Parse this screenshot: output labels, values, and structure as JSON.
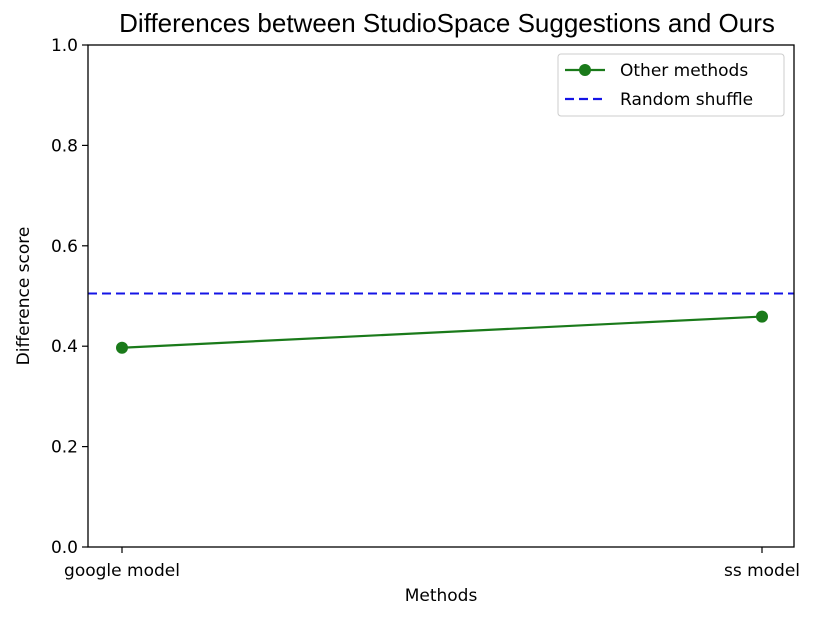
{
  "chart_data": {
    "type": "line",
    "title": "Differences between StudioSpace Suggestions and Ours",
    "xlabel": "Methods",
    "ylabel": "Difference score",
    "categories": [
      "google model",
      "ss model"
    ],
    "ylim": [
      0.0,
      1.0
    ],
    "yticks": [
      "0.0",
      "0.2",
      "0.4",
      "0.6",
      "0.8",
      "1.0"
    ],
    "grid": false,
    "legend_position": "upper-right",
    "series": [
      {
        "name": "Other methods",
        "values": [
          0.397,
          0.459
        ],
        "color": "#1a7a1a",
        "style": "solid",
        "marker": "circle"
      }
    ],
    "reference_lines": [
      {
        "name": "Random shuffle",
        "value": 0.505,
        "color": "#1414e6",
        "style": "dashed"
      }
    ]
  }
}
